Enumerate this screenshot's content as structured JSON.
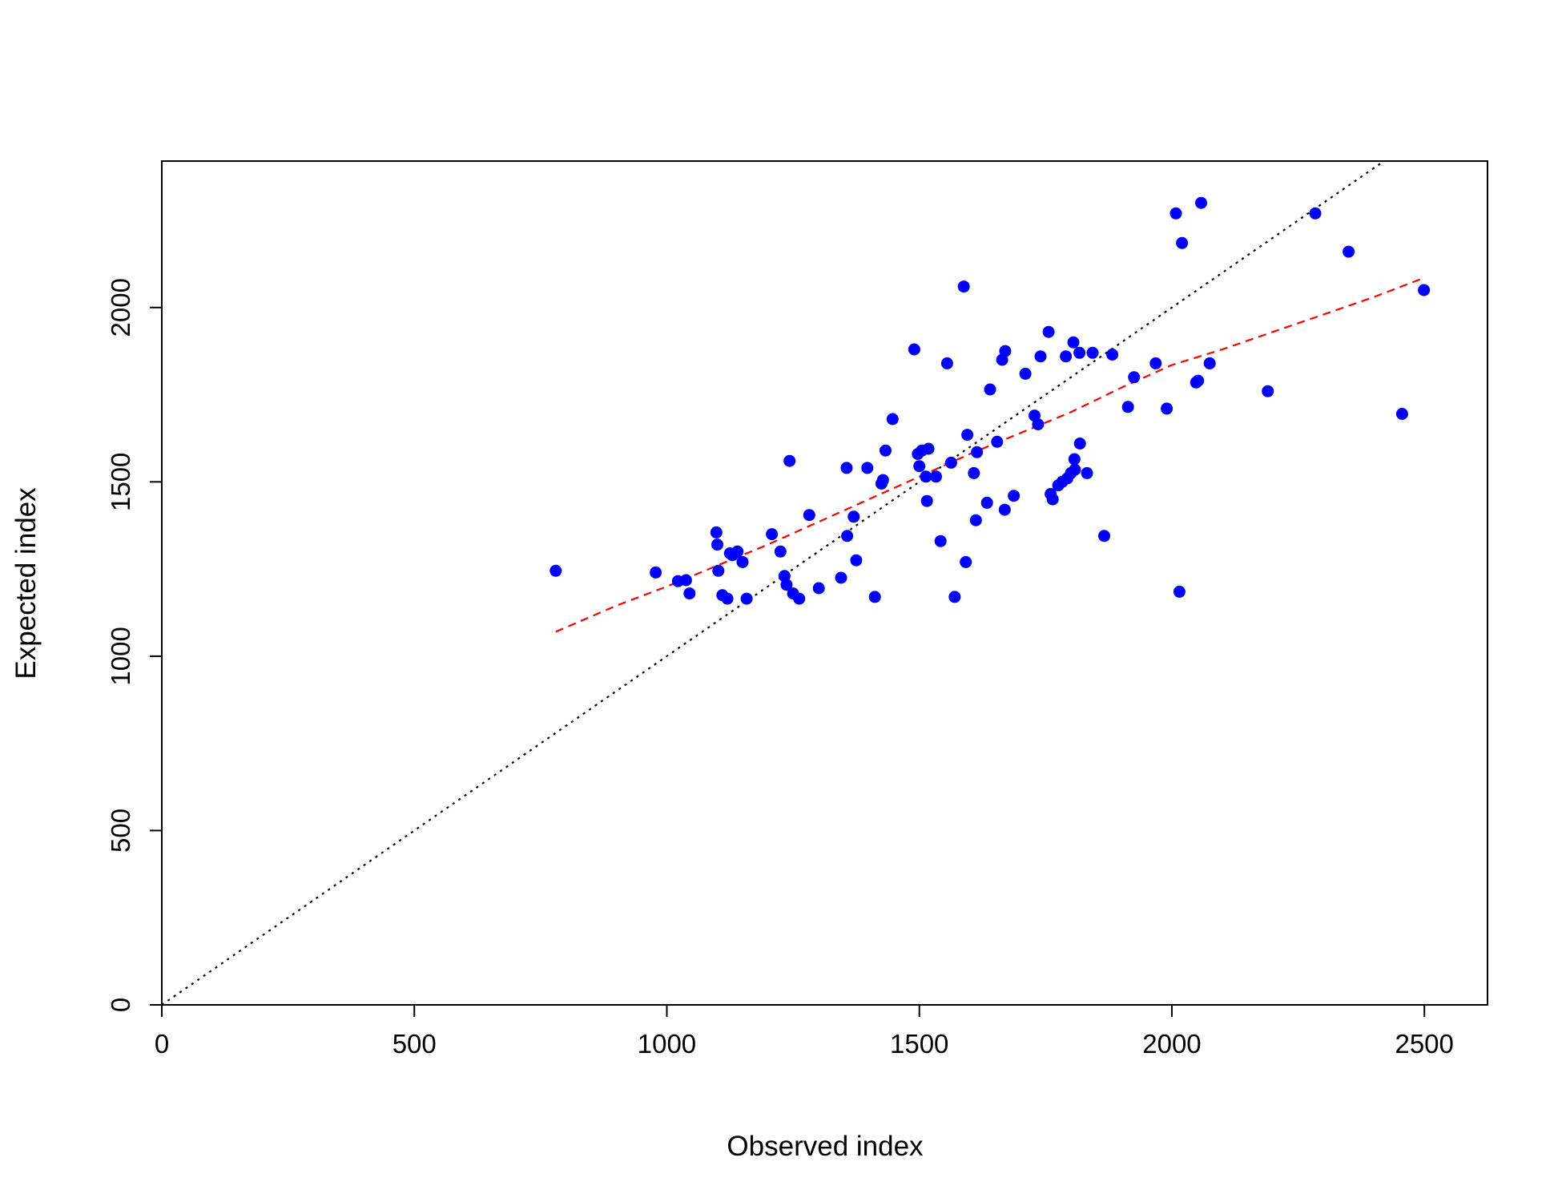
{
  "chart_data": {
    "type": "scatter",
    "title": "",
    "xlabel": "Observed index",
    "ylabel": "Expected index",
    "xlim": [
      0,
      2625
    ],
    "ylim": [
      0,
      2420
    ],
    "x_ticks": [
      0,
      500,
      1000,
      1500,
      2000,
      2500
    ],
    "y_ticks": [
      0,
      500,
      1000,
      1500,
      2000
    ],
    "grid": false,
    "legend": "none",
    "colors": {
      "points": "#0000ff",
      "reference_line": "#000000",
      "smooth_line": "#ff0000"
    },
    "series": [
      {
        "kind": "points",
        "x": [
          780,
          978,
          1022,
          1038,
          1045,
          1098,
          1100,
          1102,
          1110,
          1120,
          1125,
          1130,
          1140,
          1150,
          1158,
          1208,
          1225,
          1233,
          1237,
          1243,
          1250,
          1262,
          1282,
          1301,
          1345,
          1356,
          1357,
          1370,
          1375,
          1397,
          1412,
          1425,
          1428,
          1433,
          1447,
          1490,
          1497,
          1500,
          1505,
          1513,
          1515,
          1518,
          1533,
          1542,
          1555,
          1563,
          1570,
          1588,
          1592,
          1595,
          1608,
          1612,
          1614,
          1634,
          1640,
          1654,
          1664,
          1669,
          1670,
          1687,
          1710,
          1728,
          1735,
          1740,
          1756,
          1760,
          1764,
          1775,
          1783,
          1790,
          1793,
          1800,
          1805,
          1807,
          1808,
          1817,
          1818,
          1832,
          1843,
          1866,
          1882,
          1913,
          1925,
          1968,
          1990,
          2008,
          2015,
          2020,
          2048,
          2052,
          2058,
          2075,
          2190,
          2284,
          2350,
          2456,
          2499
        ],
        "y": [
          1245,
          1240,
          1215,
          1218,
          1180,
          1355,
          1320,
          1245,
          1175,
          1165,
          1295,
          1290,
          1300,
          1270,
          1165,
          1350,
          1300,
          1230,
          1205,
          1560,
          1180,
          1165,
          1405,
          1195,
          1225,
          1540,
          1345,
          1400,
          1275,
          1540,
          1170,
          1495,
          1505,
          1590,
          1680,
          1880,
          1580,
          1545,
          1590,
          1515,
          1445,
          1595,
          1515,
          1330,
          1840,
          1555,
          1170,
          2060,
          1270,
          1635,
          1525,
          1390,
          1585,
          1440,
          1765,
          1615,
          1850,
          1420,
          1875,
          1460,
          1810,
          1690,
          1665,
          1860,
          1930,
          1465,
          1450,
          1490,
          1500,
          1860,
          1510,
          1525,
          1900,
          1565,
          1535,
          1870,
          1610,
          1525,
          1870,
          1345,
          1865,
          1715,
          1800,
          1840,
          1710,
          2270,
          1185,
          2185,
          1785,
          1790,
          2300,
          1840,
          1760,
          2270,
          2160,
          1695,
          2050
        ]
      },
      {
        "kind": "reference_line",
        "style": "dotted",
        "x": [
          0,
          2420
        ],
        "y": [
          0,
          2420
        ]
      },
      {
        "kind": "smooth_line",
        "style": "dashed",
        "x": [
          780,
          900,
          1000,
          1100,
          1200,
          1300,
          1400,
          1500,
          1600,
          1700,
          1800,
          1900,
          2000,
          2100,
          2200,
          2300,
          2400,
          2499
        ],
        "y": [
          1070,
          1145,
          1200,
          1260,
          1320,
          1385,
          1450,
          1515,
          1580,
          1640,
          1700,
          1770,
          1835,
          1880,
          1930,
          1980,
          2030,
          2085
        ]
      }
    ]
  }
}
